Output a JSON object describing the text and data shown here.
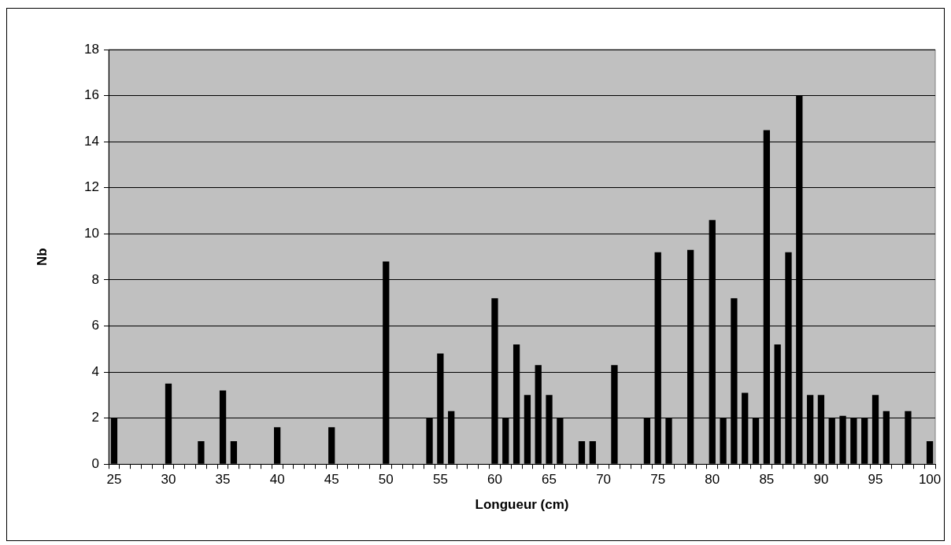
{
  "chart_data": {
    "type": "bar",
    "xlabel": "Longueur (cm)",
    "ylabel": "Nb",
    "categories": [
      "25",
      null,
      null,
      null,
      null,
      "30",
      null,
      null,
      null,
      null,
      "35",
      null,
      null,
      null,
      null,
      "40",
      null,
      null,
      null,
      null,
      "45",
      null,
      null,
      null,
      null,
      "50",
      null,
      null,
      null,
      null,
      "55",
      null,
      null,
      null,
      null,
      "60",
      null,
      null,
      null,
      null,
      "65",
      null,
      null,
      null,
      null,
      "70",
      null,
      null,
      null,
      null,
      "75",
      null,
      null,
      null,
      null,
      "80",
      null,
      null,
      null,
      null,
      "85",
      null,
      null,
      null,
      null,
      "90",
      null,
      null,
      null,
      null,
      "95",
      null,
      null,
      null,
      null,
      "100"
    ],
    "values": [
      2,
      null,
      null,
      null,
      null,
      3.5,
      null,
      null,
      1,
      null,
      3.2,
      1,
      null,
      null,
      null,
      1.6,
      null,
      null,
      null,
      null,
      1.6,
      null,
      null,
      null,
      null,
      8.8,
      null,
      null,
      null,
      2,
      4.8,
      2.3,
      null,
      null,
      null,
      7.2,
      2,
      5.2,
      3,
      4.3,
      3,
      2,
      null,
      1,
      1,
      null,
      4.3,
      null,
      null,
      2,
      9.2,
      2,
      null,
      9.3,
      null,
      10.6,
      2,
      7.2,
      3.1,
      2,
      14.5,
      5.2,
      9.2,
      16,
      3,
      3,
      2,
      2.1,
      2,
      2,
      3,
      2.3,
      null,
      2.3,
      null,
      1
    ],
    "color": "#000000",
    "ylim": [
      0,
      18
    ],
    "yticks": [
      0,
      2,
      4,
      6,
      8,
      10,
      12,
      14,
      16,
      18
    ],
    "grid": "y"
  }
}
